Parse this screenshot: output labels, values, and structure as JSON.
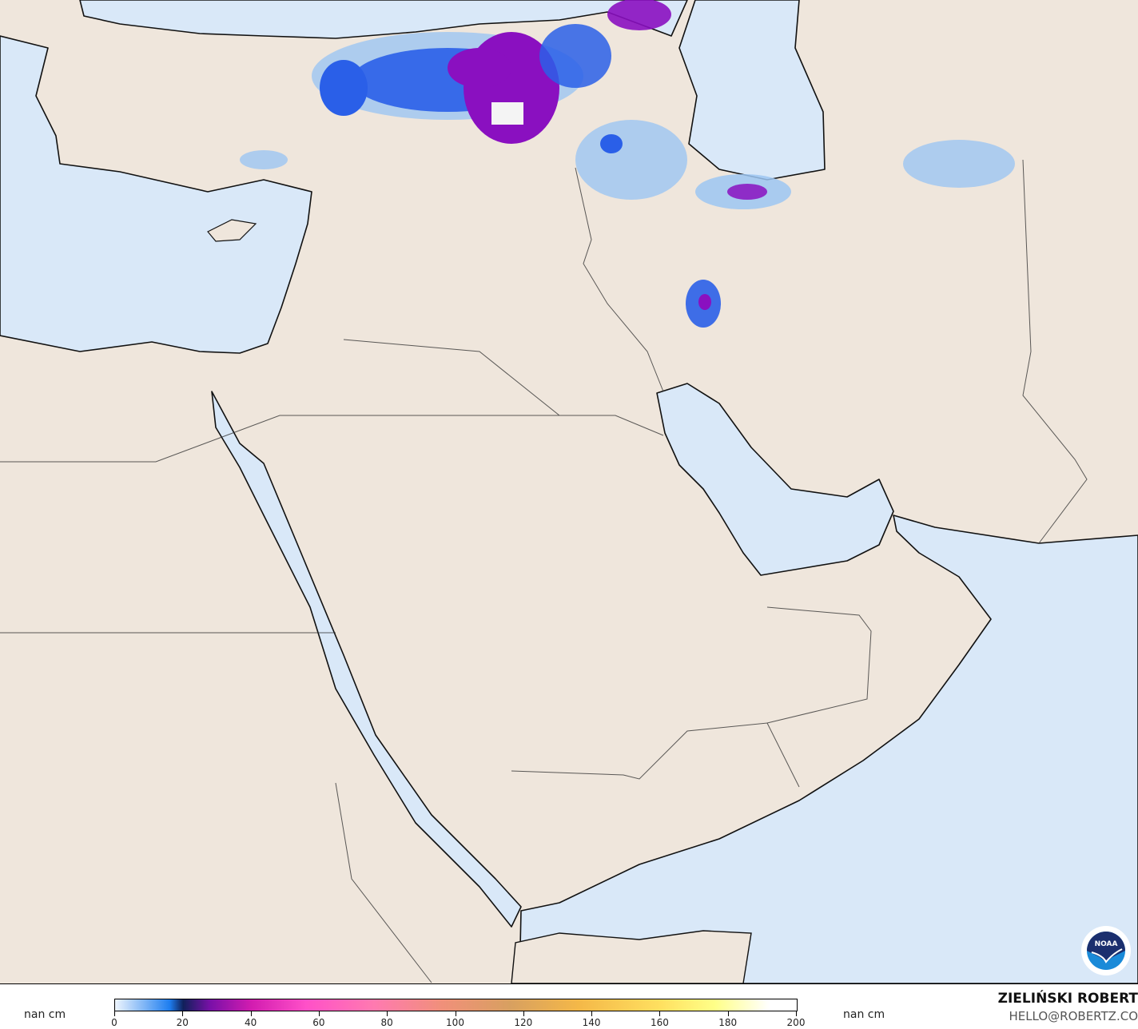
{
  "map": {
    "colors": {
      "sea": "#d9e8f8",
      "land": "#efe6dc",
      "border": "#1a1a1a",
      "precip_light": "#9cc6f2",
      "precip_mid": "#2a5fe8",
      "precip_heavy": "#8a10c0"
    },
    "logo_text": "NOAA"
  },
  "legend": {
    "left_unit": "nan cm",
    "right_unit": "nan cm",
    "ticks": [
      "0",
      "20",
      "40",
      "60",
      "80",
      "100",
      "120",
      "140",
      "160",
      "180",
      "200"
    ],
    "range": [
      0,
      200
    ]
  },
  "credit": {
    "name": "ZIELIŃSKI ROBERT",
    "email": "HELLO@ROBERTZ.CO"
  }
}
